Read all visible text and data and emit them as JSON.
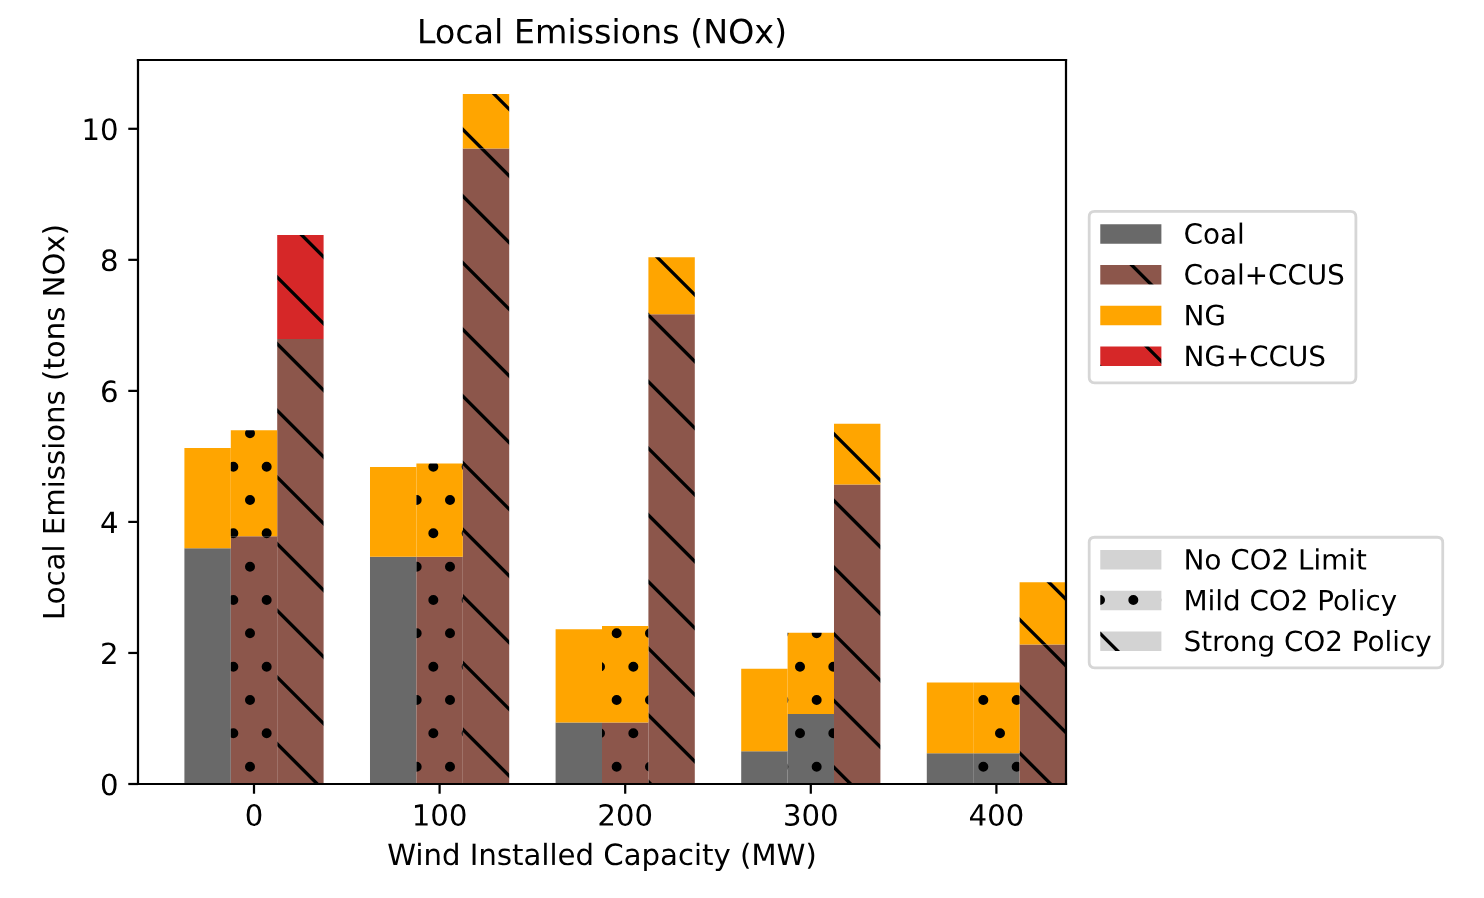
{
  "chart_data": {
    "type": "bar",
    "stacked": true,
    "title": "Local Emissions (NOx)",
    "xlabel": "Wind Installed Capacity (MW)",
    "ylabel": "Local Emissions (tons NOx)",
    "xlim": [
      -62.5,
      437.5
    ],
    "xticks": [
      0,
      100,
      200,
      300,
      400
    ],
    "ylim": [
      0,
      11.05
    ],
    "yticks": [
      0,
      2,
      4,
      6,
      8,
      10
    ],
    "grid": false,
    "legend": "right",
    "x": [
      -25,
      0,
      25,
      75,
      100,
      125,
      175,
      200,
      225,
      275,
      300,
      325,
      375,
      400,
      425
    ],
    "series": [
      {
        "name": "Coal",
        "color": "#696969",
        "line_style": "solid",
        "values": [
          3.6,
          null,
          null,
          3.47,
          null,
          null,
          0.94,
          null,
          null,
          0.5,
          null,
          null,
          0.47,
          null,
          null
        ]
      },
      {
        "color": "#696969",
        "line_style": "dotted",
        "values": [
          null,
          null,
          null,
          null,
          null,
          null,
          null,
          null,
          null,
          null,
          1.07,
          null,
          null,
          0.47,
          null
        ]
      },
      {
        "name": "Coal+CCUS",
        "color": "#8c564b",
        "line_style": "dashed",
        "values": [
          null,
          null,
          6.79,
          null,
          null,
          9.7,
          null,
          null,
          7.17,
          null,
          null,
          4.57,
          null,
          null,
          2.13
        ]
      },
      {
        "color": "#8c564b",
        "line_style": "dotted",
        "values": [
          null,
          3.78,
          null,
          null,
          3.47,
          null,
          null,
          0.94,
          null,
          null,
          null,
          null,
          null,
          null,
          null
        ]
      },
      {
        "name": "NG",
        "color": "#ffa500",
        "line_style": "solid",
        "values": [
          1.53,
          null,
          null,
          1.37,
          null,
          null,
          1.42,
          null,
          null,
          1.26,
          null,
          null,
          1.08,
          null,
          null
        ]
      },
      {
        "color": "#ffa500",
        "line_style": "dotted",
        "values": [
          null,
          1.62,
          null,
          null,
          1.42,
          null,
          null,
          1.47,
          null,
          null,
          1.24,
          null,
          null,
          1.08,
          null
        ]
      },
      {
        "color": "#ffa500",
        "line_style": "dashed",
        "values": [
          null,
          null,
          null,
          null,
          null,
          0.83,
          null,
          null,
          0.87,
          null,
          null,
          0.93,
          null,
          null,
          0.95
        ]
      },
      {
        "name": "NG+CCUS",
        "color": "#d62728",
        "line_style": "dashed",
        "values": [
          null,
          null,
          1.59,
          null,
          null,
          null,
          null,
          null,
          null,
          null,
          null,
          null,
          null,
          null,
          null
        ]
      },
      {
        "name": "No CO2 Limit",
        "color": "#d3d3d3",
        "line_style": "solid",
        "values": [
          null,
          null,
          null,
          null,
          null,
          null,
          null,
          null,
          null,
          null,
          null,
          null,
          null,
          null,
          null
        ]
      },
      {
        "name": "Mild CO2 Policy",
        "color": "#d3d3d3",
        "line_style": "dotted",
        "values": [
          null,
          null,
          null,
          null,
          null,
          null,
          null,
          null,
          null,
          null,
          null,
          null,
          null,
          null,
          null
        ]
      },
      {
        "name": "Strong CO2 Policy",
        "color": "#d3d3d3",
        "line_style": "dashed",
        "values": [
          null,
          null,
          null,
          null,
          null,
          null,
          null,
          null,
          null,
          null,
          null,
          null,
          null,
          null,
          null
        ]
      }
    ]
  }
}
